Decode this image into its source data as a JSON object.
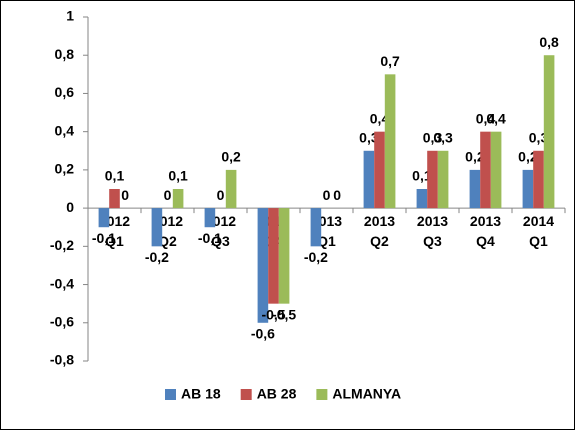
{
  "chart_data": {
    "type": "bar",
    "categories": [
      "2012 Q1",
      "2012 Q2",
      "2012 Q3",
      "2012 Q4",
      "2013 Q1",
      "2013 Q2",
      "2013 Q3",
      "2013 Q4",
      "2014 Q1"
    ],
    "series": [
      {
        "name": "AB 18",
        "color": "#4f81bd",
        "values": [
          -0.1,
          -0.2,
          -0.1,
          -0.6,
          -0.2,
          0.3,
          0.1,
          0.2,
          0.2
        ],
        "value_labels": [
          "-0,1",
          "-0,2",
          "-0,1",
          "-0,6",
          "-0,2",
          "0,3",
          "0,1",
          "0,2",
          "0,2"
        ]
      },
      {
        "name": "AB 28",
        "color": "#c0504d",
        "values": [
          0.1,
          0,
          0,
          -0.5,
          0,
          0.4,
          0.3,
          0.4,
          0.3
        ],
        "value_labels": [
          "0,1",
          "0",
          "0",
          "-0,5",
          "0",
          "0,4",
          "0,3",
          "0,4",
          "0,3"
        ]
      },
      {
        "name": "ALMANYA",
        "color": "#9bbb59",
        "values": [
          0,
          0.1,
          0.2,
          -0.5,
          0,
          0.7,
          0.3,
          0.4,
          0.8
        ],
        "value_labels": [
          "0",
          "0,1",
          "0,2",
          "-0,5",
          "0",
          "0,7",
          "0,3",
          "0,4",
          "0,8"
        ]
      }
    ],
    "ylim": [
      -0.8,
      1
    ],
    "yticks": [
      {
        "value": -0.8,
        "label": "-0,8"
      },
      {
        "value": -0.6,
        "label": "-0,6"
      },
      {
        "value": -0.4,
        "label": "-0,4"
      },
      {
        "value": -0.2,
        "label": "-0,2"
      },
      0,
      {
        "value": 0.2,
        "label": "0,2"
      },
      {
        "value": 0.4,
        "label": "0,4"
      },
      {
        "value": 0.6,
        "label": "0,6"
      },
      {
        "value": 0.8,
        "label": "0,8"
      },
      1
    ],
    "grid": false,
    "legend": "bottom"
  }
}
